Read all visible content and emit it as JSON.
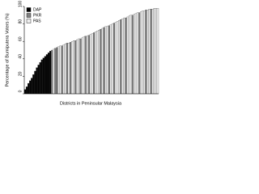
{
  "chart_data": {
    "type": "bar",
    "stacked": false,
    "xlabel": "Districts in Peninsular Malaysia",
    "ylabel": "Percentage of Bumiputera Voters (%)",
    "ylim": [
      0,
      100
    ],
    "yticks": [
      0,
      20,
      40,
      60,
      80,
      100
    ],
    "legend": "upper left",
    "series": [
      {
        "name": "DAP",
        "color": "#000000",
        "values": [
          5,
          8,
          12,
          15,
          18,
          22,
          26,
          30,
          33,
          36,
          39,
          41,
          43,
          45,
          47,
          49,
          null,
          null,
          null,
          null,
          null,
          null,
          null,
          null,
          null,
          null,
          null,
          null,
          null,
          null,
          null,
          null,
          null,
          null,
          null,
          null,
          null,
          null,
          null,
          null,
          null,
          null,
          null,
          null,
          null,
          null,
          null,
          null,
          null,
          null,
          null,
          null,
          null,
          null,
          null,
          null,
          null,
          null,
          null,
          null,
          null,
          null,
          null,
          null,
          null,
          null,
          null,
          null,
          null,
          null,
          null,
          null,
          null,
          null,
          null,
          null,
          null,
          null,
          null,
          null
        ]
      },
      {
        "name": "PKR",
        "color": "#808080",
        "values": [
          null,
          null,
          null,
          null,
          null,
          null,
          null,
          null,
          null,
          null,
          null,
          null,
          null,
          null,
          null,
          null,
          50,
          null,
          52,
          53,
          null,
          null,
          55,
          null,
          null,
          58,
          null,
          59,
          null,
          null,
          61,
          null,
          null,
          63,
          null,
          null,
          66,
          null,
          67,
          null,
          null,
          70,
          null,
          null,
          null,
          74,
          null,
          76,
          null,
          null,
          78,
          null,
          null,
          81,
          null,
          null,
          null,
          85,
          null,
          null,
          87,
          null,
          null,
          null,
          90,
          null,
          null,
          null,
          93,
          null,
          null,
          null,
          96,
          null,
          null,
          97,
          null,
          null,
          null,
          null
        ]
      },
      {
        "name": "PAS",
        "color": "#eeeeee",
        "values": [
          null,
          null,
          null,
          null,
          null,
          null,
          null,
          null,
          null,
          null,
          null,
          null,
          null,
          null,
          null,
          null,
          null,
          51,
          null,
          null,
          54,
          55,
          null,
          56,
          57,
          null,
          58,
          null,
          60,
          61,
          null,
          62,
          63,
          null,
          64,
          65,
          null,
          66,
          null,
          68,
          69,
          null,
          71,
          72,
          73,
          null,
          75,
          null,
          77,
          77,
          null,
          79,
          80,
          null,
          82,
          83,
          84,
          null,
          86,
          87,
          null,
          88,
          89,
          90,
          null,
          91,
          92,
          93,
          null,
          94,
          95,
          95,
          null,
          96,
          97,
          null,
          97,
          98,
          98,
          98
        ]
      }
    ]
  }
}
